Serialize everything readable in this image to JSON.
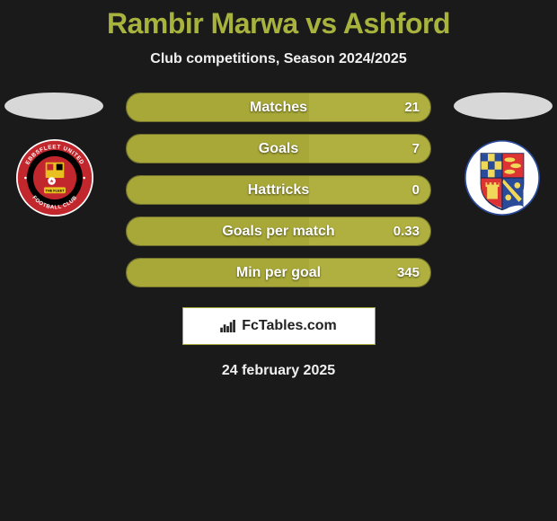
{
  "title": "Rambir Marwa vs Ashford",
  "subtitle": "Club competitions, Season 2024/2025",
  "colors": {
    "accent": "#a8b33e",
    "bar_fill": "#a8a838",
    "bar_border": "rgba(170,170,60,0.6)",
    "text_light": "#f0f0f0",
    "bg": "#1a1a1a",
    "oval": "#d8d8d8"
  },
  "stats": [
    {
      "label": "Matches",
      "left_pct": 60,
      "right_pct": 40,
      "right_value": "21"
    },
    {
      "label": "Goals",
      "left_pct": 60,
      "right_pct": 40,
      "right_value": "7"
    },
    {
      "label": "Hattricks",
      "left_pct": 60,
      "right_pct": 40,
      "right_value": "0"
    },
    {
      "label": "Goals per match",
      "left_pct": 60,
      "right_pct": 40,
      "right_value": "0.33"
    },
    {
      "label": "Min per goal",
      "left_pct": 60,
      "right_pct": 40,
      "right_value": "345"
    }
  ],
  "brand": "FcTables.com",
  "date": "24 february 2025",
  "left_crest": {
    "outer_text_top": "EBBSFLEET UNITED",
    "outer_text_bottom": "FOOTBALL CLUB",
    "inner_text": "THE FLEET"
  },
  "right_crest": {
    "name": "wealdstone-style-shield"
  }
}
